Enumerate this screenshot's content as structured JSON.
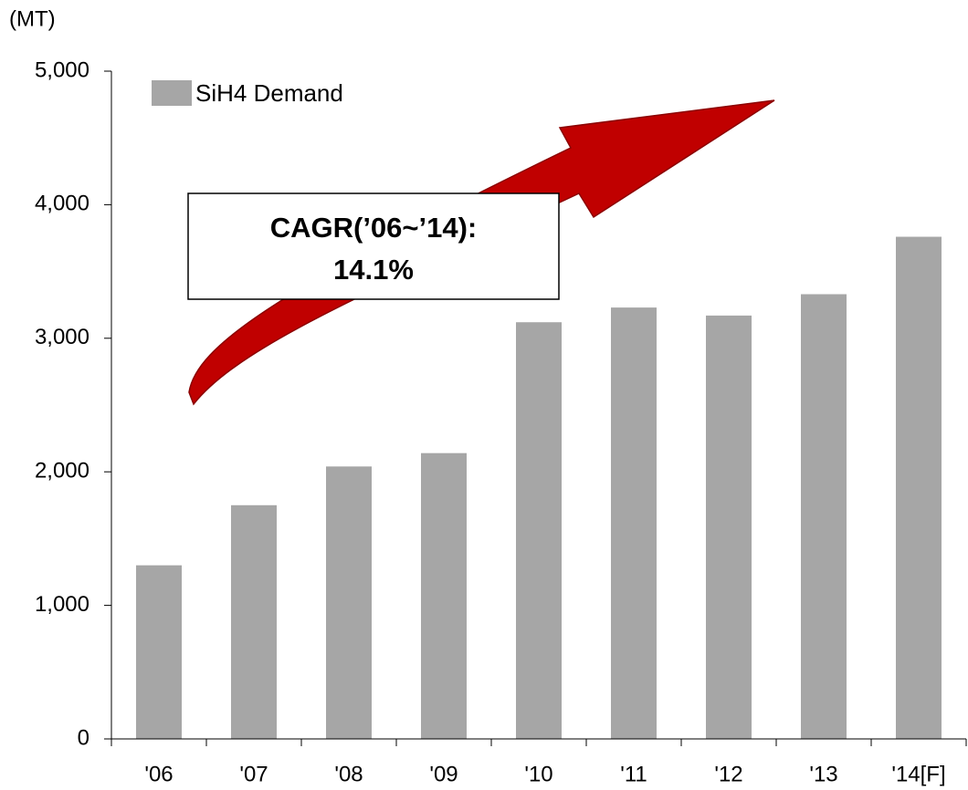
{
  "chart_data": {
    "type": "bar",
    "y_label": "(MT)",
    "categories": [
      "'06",
      "'07",
      "'08",
      "'09",
      "'10",
      "'11",
      "'12",
      "'13",
      "'14[F]"
    ],
    "series": [
      {
        "name": "SiH4 Demand",
        "color": "#a6a6a6",
        "values": [
          1300,
          1750,
          2040,
          2140,
          3120,
          3230,
          3170,
          3330,
          3760
        ]
      }
    ],
    "ylim": [
      0,
      5000
    ],
    "yticks": [
      0,
      {
        "value": 1000,
        "label": "1,000"
      },
      {
        "value": 2000,
        "label": "2,000"
      },
      {
        "value": 3000,
        "label": "3,000"
      },
      {
        "value": 4000,
        "label": "4,000"
      },
      {
        "value": 5000,
        "label": "5,000"
      }
    ],
    "legend": "top-left",
    "annotation": [
      "CAGR(’06~’14):",
      "14.1%"
    ]
  }
}
